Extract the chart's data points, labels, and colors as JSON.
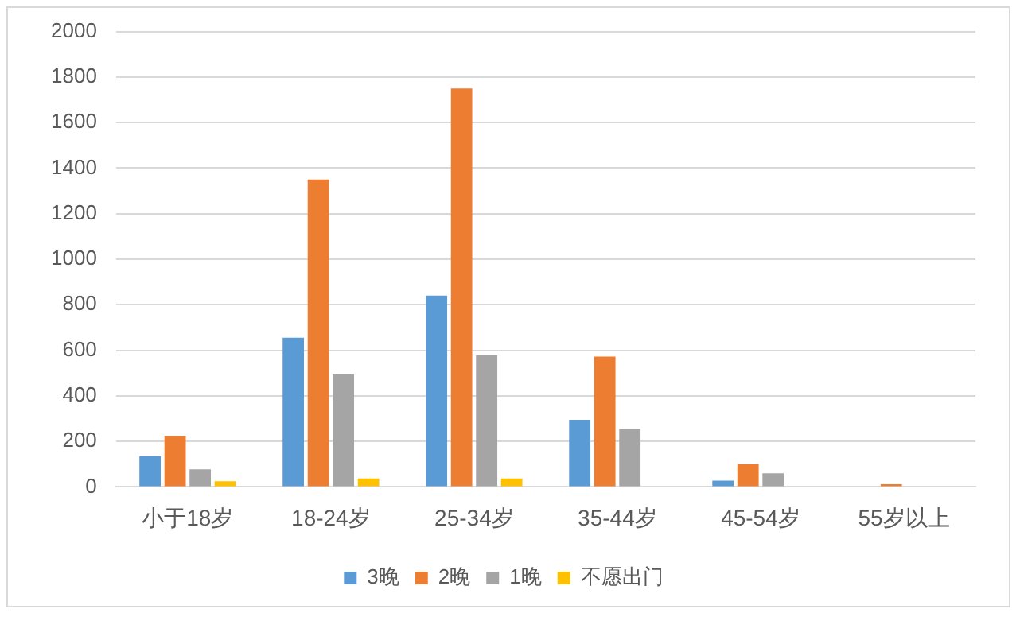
{
  "chart_data": {
    "type": "bar",
    "categories": [
      "小于18岁",
      "18-24岁",
      "25-34岁",
      "35-44岁",
      "45-54岁",
      "55岁以上"
    ],
    "series": [
      {
        "name": "3晚",
        "color": "#5b9bd5",
        "values": [
          135,
          655,
          840,
          295,
          28,
          0
        ]
      },
      {
        "name": "2晚",
        "color": "#ed7d31",
        "values": [
          225,
          1350,
          1750,
          572,
          100,
          12
        ]
      },
      {
        "name": "1晚",
        "color": "#a5a5a5",
        "values": [
          77,
          495,
          578,
          255,
          60,
          0
        ]
      },
      {
        "name": "不愿出门",
        "color": "#ffc000",
        "values": [
          25,
          37,
          37,
          0,
          0,
          0
        ]
      }
    ],
    "ylim": [
      0,
      2000
    ],
    "yticks": [
      0,
      200,
      400,
      600,
      800,
      1000,
      1200,
      1400,
      1600,
      1800,
      2000
    ],
    "grid": "y",
    "legend": "bottom"
  }
}
